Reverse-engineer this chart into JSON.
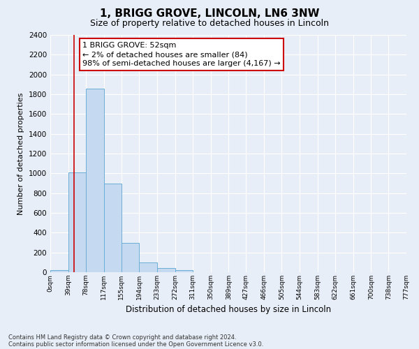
{
  "title": "1, BRIGG GROVE, LINCOLN, LN6 3NW",
  "subtitle": "Size of property relative to detached houses in Lincoln",
  "xlabel": "Distribution of detached houses by size in Lincoln",
  "ylabel": "Number of detached properties",
  "bin_labels": [
    "0sqm",
    "39sqm",
    "78sqm",
    "117sqm",
    "155sqm",
    "194sqm",
    "233sqm",
    "272sqm",
    "311sqm",
    "350sqm",
    "389sqm",
    "427sqm",
    "466sqm",
    "505sqm",
    "544sqm",
    "583sqm",
    "622sqm",
    "661sqm",
    "700sqm",
    "738sqm",
    "777sqm"
  ],
  "bar_values": [
    20,
    1010,
    1860,
    900,
    300,
    100,
    40,
    20,
    0,
    0,
    0,
    0,
    0,
    0,
    0,
    0,
    0,
    0,
    0,
    0
  ],
  "bar_color": "#c5d9f1",
  "bar_edge_color": "#6baed6",
  "ylim": [
    0,
    2400
  ],
  "yticks": [
    0,
    200,
    400,
    600,
    800,
    1000,
    1200,
    1400,
    1600,
    1800,
    2000,
    2200,
    2400
  ],
  "vline_x": 52,
  "vline_color": "#cc0000",
  "bin_edges": [
    0,
    39,
    78,
    117,
    155,
    194,
    233,
    272,
    311,
    350,
    389,
    427,
    466,
    505,
    544,
    583,
    622,
    661,
    700,
    738,
    777
  ],
  "annotation_text": "1 BRIGG GROVE: 52sqm\n← 2% of detached houses are smaller (84)\n98% of semi-detached houses are larger (4,167) →",
  "annotation_box_color": "#ffffff",
  "annotation_box_edge": "#cc0000",
  "footer_line1": "Contains HM Land Registry data © Crown copyright and database right 2024.",
  "footer_line2": "Contains public sector information licensed under the Open Government Licence v3.0.",
  "bg_color": "#e8eef7",
  "plot_bg_color": "#e8eef7",
  "title_fontsize": 11,
  "subtitle_fontsize": 9,
  "ann_fontsize": 8
}
